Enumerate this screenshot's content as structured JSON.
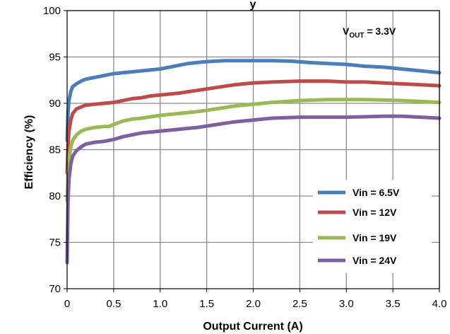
{
  "chart_data": {
    "type": "line",
    "title": "y",
    "xlabel": "Output Current (A)",
    "ylabel": "Efficiency (%)",
    "xlim": [
      0,
      4.0
    ],
    "ylim": [
      70,
      100
    ],
    "xticks": [
      0,
      0.5,
      1.0,
      1.5,
      2.0,
      2.5,
      3.0,
      3.5,
      4.0
    ],
    "xtick_labels": [
      "0",
      "0.5",
      "1.0",
      "1.5",
      "2.0",
      "2.5",
      "3.0",
      "3.5",
      "4.0"
    ],
    "yticks": [
      70,
      75,
      80,
      85,
      90,
      95,
      100
    ],
    "ytick_labels": [
      "70",
      "75",
      "80",
      "85",
      "90",
      "95",
      "100"
    ],
    "grid": true,
    "legend_position": "lower-right",
    "annotation": {
      "main": "V",
      "sub": "OUT",
      "rest": " = 3.3V"
    },
    "series": [
      {
        "name": "Vin = 6.5V",
        "color": "#4a7ebb",
        "x": [
          0,
          0.01,
          0.02,
          0.04,
          0.06,
          0.1,
          0.15,
          0.2,
          0.3,
          0.4,
          0.5,
          0.6,
          0.7,
          0.8,
          0.9,
          1.0,
          1.1,
          1.2,
          1.3,
          1.4,
          1.5,
          1.6,
          1.7,
          1.8,
          2.0,
          2.2,
          2.4,
          2.6,
          2.8,
          3.0,
          3.2,
          3.4,
          3.6,
          3.8,
          4.0
        ],
        "y": [
          86.0,
          89.0,
          90.3,
          91.3,
          91.8,
          92.1,
          92.4,
          92.6,
          92.8,
          93.0,
          93.2,
          93.3,
          93.4,
          93.5,
          93.6,
          93.7,
          93.9,
          94.1,
          94.3,
          94.4,
          94.5,
          94.55,
          94.6,
          94.6,
          94.6,
          94.6,
          94.55,
          94.4,
          94.3,
          94.2,
          94.0,
          93.9,
          93.7,
          93.5,
          93.3
        ]
      },
      {
        "name": "Vin = 12V",
        "color": "#be4b48",
        "x": [
          0,
          0.01,
          0.02,
          0.04,
          0.06,
          0.1,
          0.15,
          0.2,
          0.3,
          0.4,
          0.5,
          0.6,
          0.7,
          0.8,
          0.9,
          1.0,
          1.2,
          1.4,
          1.6,
          1.8,
          2.0,
          2.2,
          2.5,
          2.8,
          3.0,
          3.2,
          3.4,
          3.6,
          3.8,
          4.0
        ],
        "y": [
          82.5,
          85.5,
          87.0,
          88.2,
          88.9,
          89.4,
          89.6,
          89.8,
          89.9,
          90.0,
          90.1,
          90.3,
          90.5,
          90.6,
          90.8,
          90.9,
          91.1,
          91.4,
          91.7,
          92.0,
          92.2,
          92.3,
          92.4,
          92.4,
          92.3,
          92.3,
          92.2,
          92.1,
          92.0,
          91.9
        ]
      },
      {
        "name": "Vin = 19V",
        "color": "#98b954",
        "x": [
          0,
          0.01,
          0.02,
          0.04,
          0.06,
          0.1,
          0.15,
          0.2,
          0.3,
          0.4,
          0.45,
          0.5,
          0.55,
          0.6,
          0.7,
          0.8,
          1.0,
          1.2,
          1.4,
          1.6,
          1.8,
          2.0,
          2.2,
          2.5,
          2.8,
          3.0,
          3.2,
          3.4,
          3.6,
          3.8,
          4.0
        ],
        "y": [
          79.5,
          82.5,
          84.0,
          85.3,
          86.0,
          86.6,
          87.0,
          87.2,
          87.4,
          87.5,
          87.5,
          87.7,
          87.9,
          88.1,
          88.3,
          88.4,
          88.7,
          88.9,
          89.1,
          89.4,
          89.7,
          89.9,
          90.1,
          90.3,
          90.4,
          90.4,
          90.4,
          90.35,
          90.3,
          90.2,
          90.1
        ]
      },
      {
        "name": "Vin = 24V",
        "color": "#7d60a0",
        "x": [
          0,
          0.01,
          0.02,
          0.04,
          0.06,
          0.1,
          0.15,
          0.2,
          0.3,
          0.4,
          0.5,
          0.6,
          0.7,
          0.8,
          1.0,
          1.2,
          1.4,
          1.6,
          1.8,
          2.0,
          2.2,
          2.5,
          2.8,
          3.0,
          3.2,
          3.4,
          3.6,
          3.8,
          4.0
        ],
        "y": [
          72.8,
          79.5,
          81.8,
          83.5,
          84.3,
          84.9,
          85.3,
          85.6,
          85.8,
          85.9,
          86.1,
          86.4,
          86.6,
          86.8,
          87.0,
          87.2,
          87.4,
          87.7,
          88.0,
          88.2,
          88.4,
          88.5,
          88.5,
          88.5,
          88.55,
          88.6,
          88.6,
          88.5,
          88.4
        ]
      }
    ]
  }
}
